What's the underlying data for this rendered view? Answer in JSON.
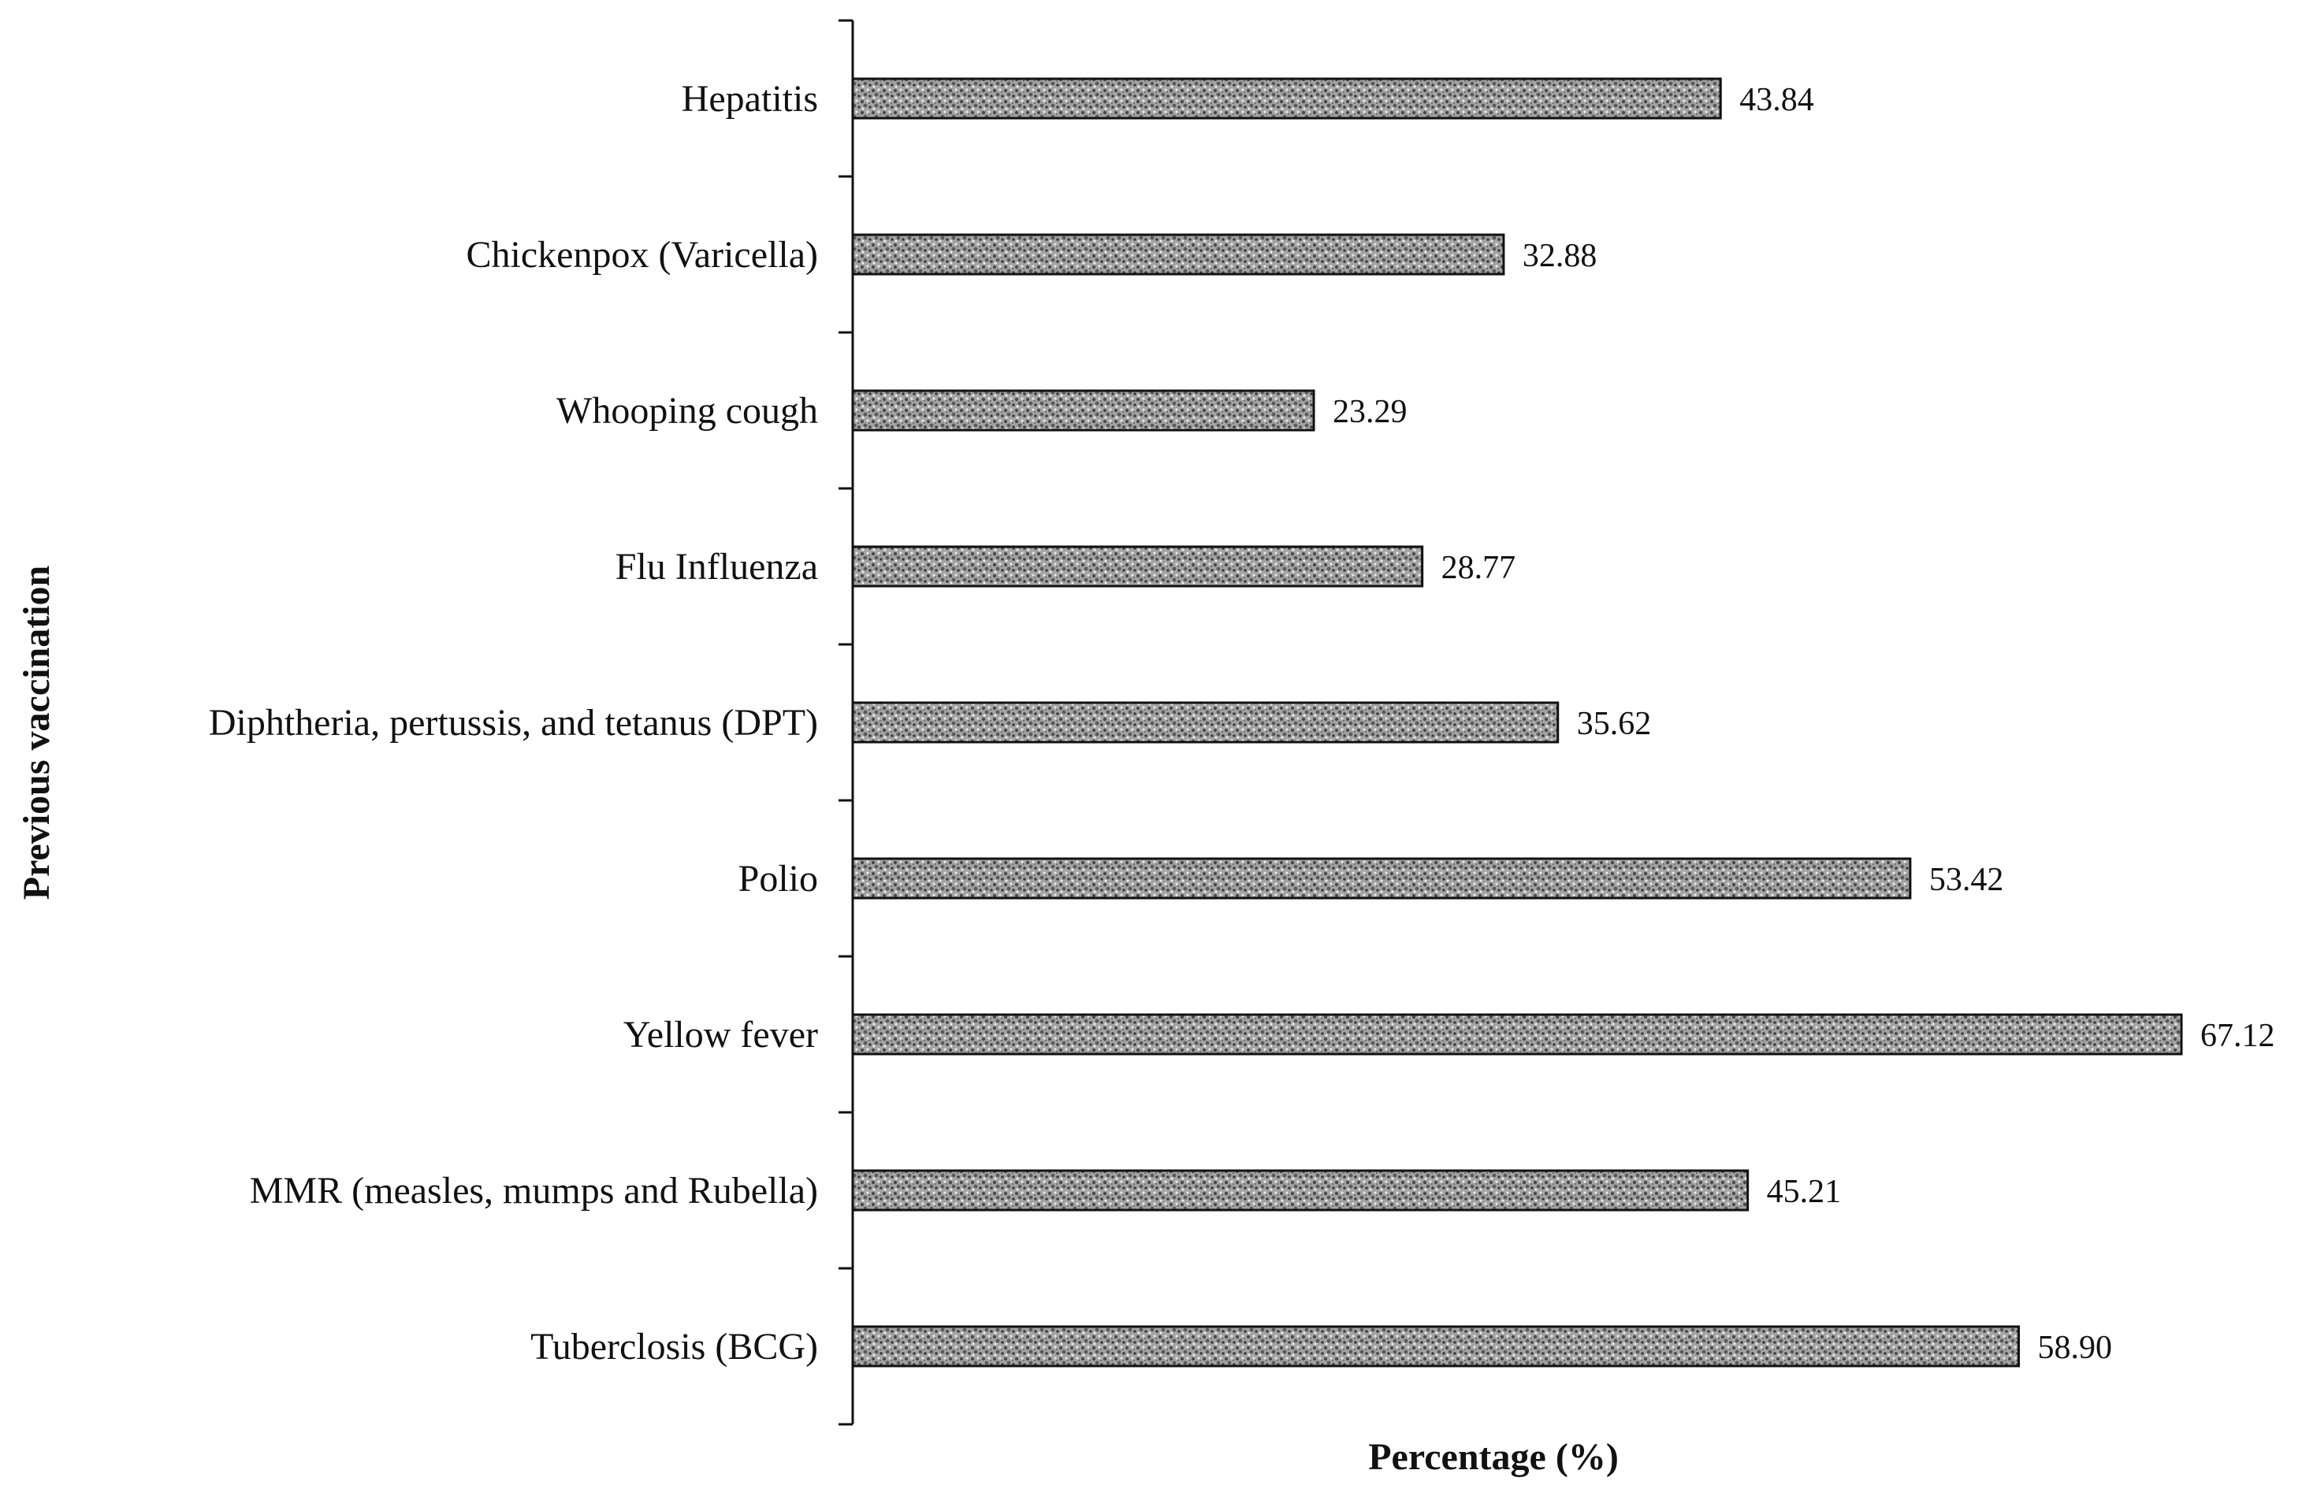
{
  "chart_data": {
    "type": "bar",
    "orientation": "horizontal",
    "categories": [
      "Hepatitis",
      "Chickenpox (Varicella)",
      "Whooping cough",
      "Flu Influenza",
      "Diphtheria, pertussis, and tetanus (DPT)",
      "Polio",
      "Yellow fever",
      "MMR (measles, mumps and Rubella)",
      "Tuberclosis (BCG)"
    ],
    "values": [
      43.84,
      32.88,
      23.29,
      28.77,
      35.62,
      53.42,
      67.12,
      45.21,
      58.9
    ],
    "value_labels": [
      "43.84",
      "32.88",
      "23.29",
      "28.77",
      "35.62",
      "53.42",
      "67.12",
      "45.21",
      "58.90"
    ],
    "title": "",
    "xlabel": "Percentage (%)",
    "ylabel": "Previous vaccination",
    "xlim": [
      0,
      67.12
    ],
    "grid": false,
    "legend": "none",
    "bar_pattern": "grey-stipple",
    "colors": {
      "bar_fill": "#9a9a9a",
      "bar_stroke": "#111111",
      "axis": "#111111",
      "text": "#111111"
    }
  }
}
